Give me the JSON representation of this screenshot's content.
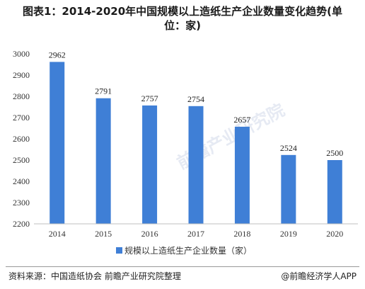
{
  "title_line1": "图表1：2014-2020年中国规模以上造纸生产企业数量变化趋势(单",
  "title_line2": "位：家)",
  "source_text": "资料来源：中国造纸协会 前瞻产业研究院整理",
  "app_text": "@前瞻经济学人APP",
  "watermark_text": "前瞻产业研究院",
  "colors": {
    "bar": "#3f7fd6",
    "axis": "#bfbfbf"
  },
  "chart_data": {
    "type": "bar",
    "categories": [
      "2014",
      "2015",
      "2016",
      "2017",
      "2018",
      "2019",
      "2020"
    ],
    "series": [
      {
        "name": "规模以上造纸生产企业数量（家）",
        "values": [
          2962,
          2791,
          2757,
          2754,
          2657,
          2524,
          2500
        ]
      }
    ],
    "yticks": [
      2200,
      2300,
      2400,
      2500,
      2600,
      2700,
      2800,
      2900,
      3000
    ],
    "ylim": [
      2200,
      3000
    ],
    "data_labels": true,
    "grid": false,
    "legend_position": "bottom"
  }
}
